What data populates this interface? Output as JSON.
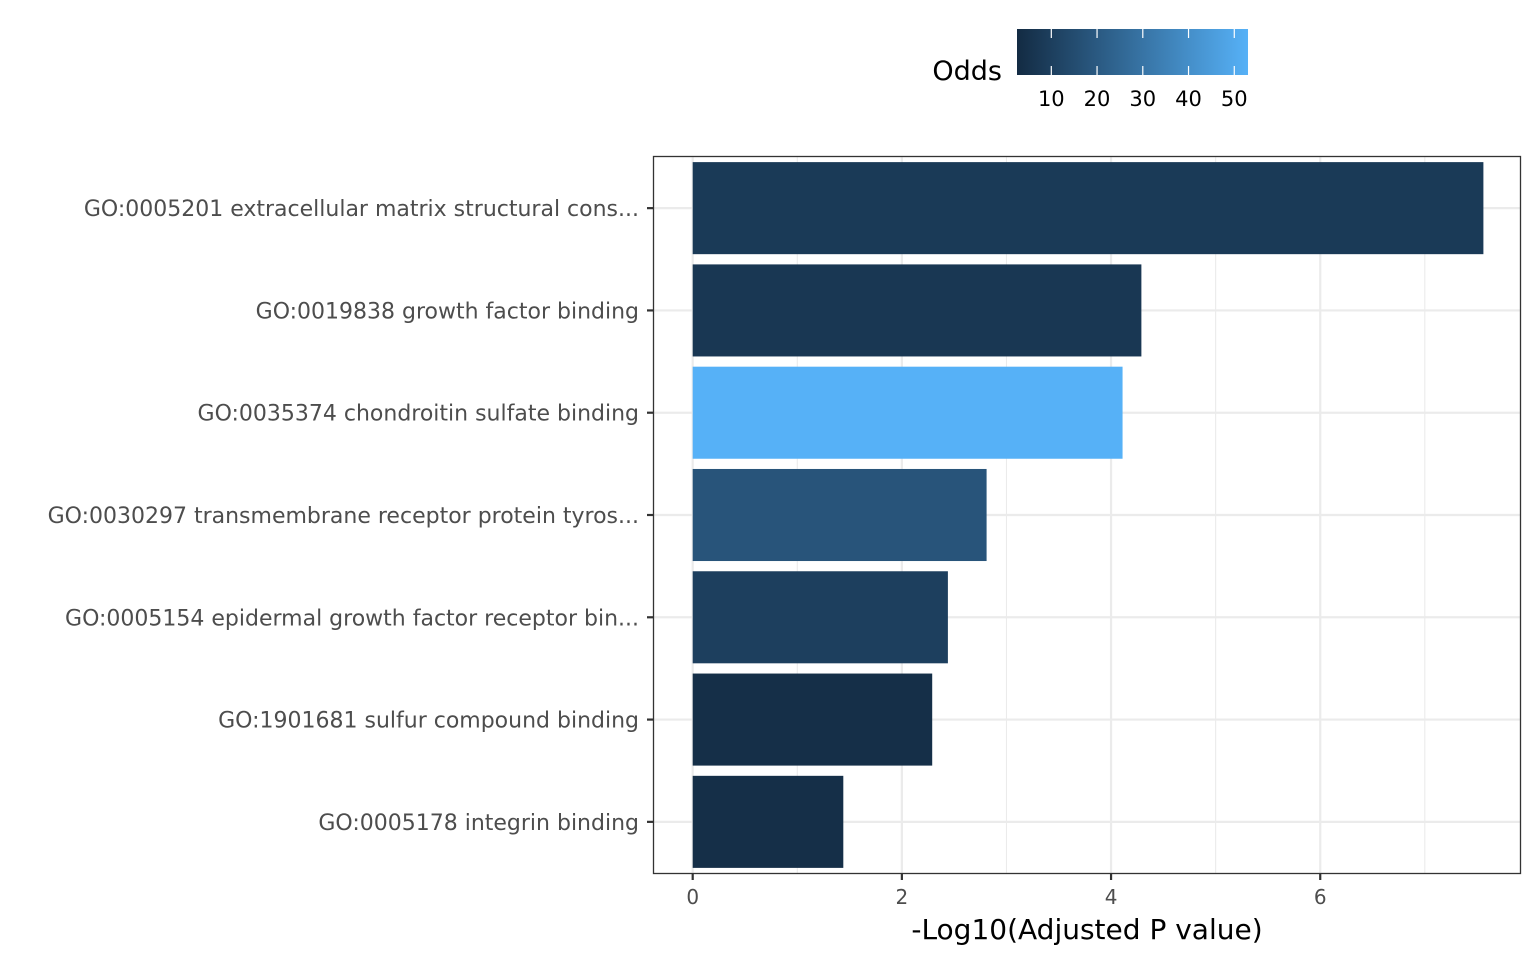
{
  "chart_data": {
    "type": "bar",
    "orientation": "horizontal",
    "xlabel": "-Log10(Adjusted P value)",
    "ylabel": "",
    "xlim": [
      -0.37,
      7.91
    ],
    "x_ticks": [
      0,
      2,
      4,
      6
    ],
    "grid": true,
    "legend": {
      "title": "Odds",
      "placement": "top",
      "type": "colorbar",
      "range": [
        2.5,
        53
      ],
      "ticks": [
        10,
        20,
        30,
        40,
        50
      ],
      "color_low": "#132B43",
      "color_high": "#56B1F7"
    },
    "categories": [
      "GO:0005201 extracellular matrix structural cons...",
      "GO:0019838 growth factor binding",
      "GO:0035374 chondroitin sulfate binding",
      "GO:0030297 transmembrane receptor protein tyros...",
      "GO:0005154 epidermal growth factor receptor bin...",
      "GO:1901681 sulfur compound binding",
      "GO:0005178 integrin binding"
    ],
    "values": [
      7.56,
      4.29,
      4.11,
      2.81,
      2.44,
      2.29,
      1.44
    ],
    "odds": [
      8,
      7,
      53,
      18,
      10,
      4,
      4
    ]
  }
}
